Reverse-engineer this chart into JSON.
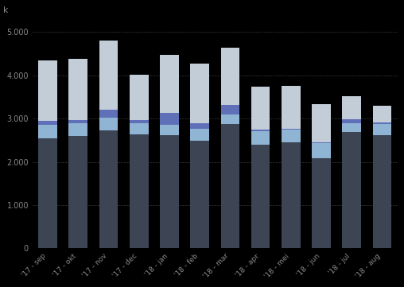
{
  "categories": [
    "'17 - sep",
    "'17 - okt",
    "'17 - nov",
    "'17 - dec",
    "'18 - jan",
    "'18 - feb",
    "'18 - mar",
    "'18 - apr",
    "'18 - mei",
    "'18 - jun",
    "'18 - jul",
    "'18 - aug"
  ],
  "layer1_dark": [
    2550,
    2600,
    2730,
    2630,
    2620,
    2480,
    2870,
    2400,
    2450,
    2080,
    2700,
    2620
  ],
  "layer2_lightblue": [
    300,
    290,
    290,
    260,
    240,
    280,
    220,
    310,
    290,
    350,
    190,
    260
  ],
  "layer3_purple": [
    100,
    80,
    190,
    70,
    280,
    130,
    230,
    40,
    25,
    25,
    100,
    35
  ],
  "layer4_lightgray": [
    1400,
    1410,
    1600,
    1060,
    1340,
    1380,
    1310,
    980,
    985,
    870,
    530,
    385
  ],
  "colors": [
    "#3d4555",
    "#8fb4d4",
    "#6070b8",
    "#c2cdd8"
  ],
  "ylabel": "k",
  "ylim": [
    0,
    5200
  ],
  "yticks": [
    0,
    1000,
    2000,
    3000,
    4000,
    5000
  ],
  "ytick_labels": [
    "0",
    "1.000",
    "2.000",
    "3.000",
    "4.000",
    "5.000"
  ],
  "bg_color": "#000000",
  "grid_color": "#888888",
  "tick_color": "#888888"
}
